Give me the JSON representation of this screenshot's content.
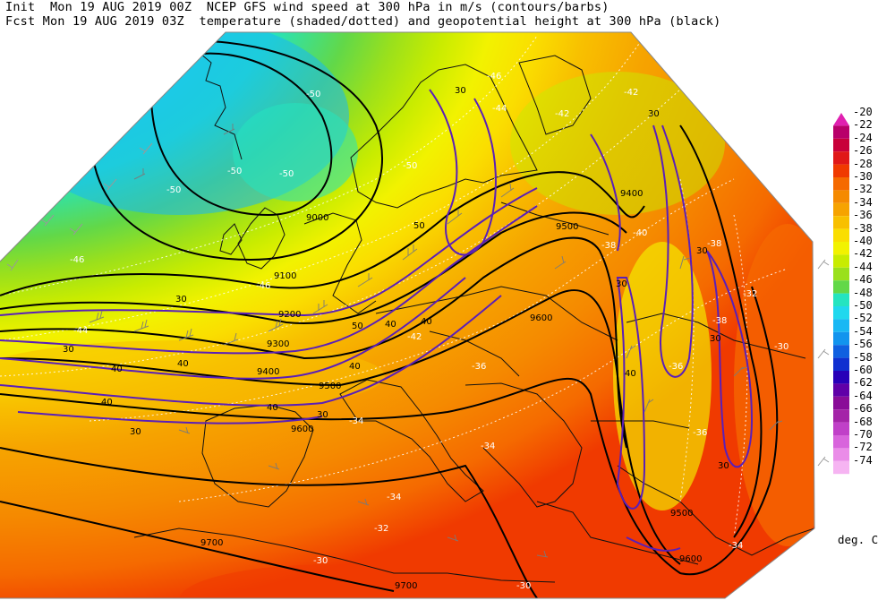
{
  "header": {
    "line1": "Init  Mon 19 AUG 2019 00Z  NCEP GFS wind speed at 300 hPa in m/s (contours/barbs)",
    "line2": "Fcst Mon 19 AUG 2019 03Z  temperature (shaded/dotted) and geopotential height at 300 hPa (black)"
  },
  "legend": {
    "units": "deg. C",
    "levels": [
      {
        "label": "-20",
        "color": "#e020b0"
      },
      {
        "label": "-22",
        "color": "#b8006a"
      },
      {
        "label": "-24",
        "color": "#c8003a"
      },
      {
        "label": "-26",
        "color": "#e01818"
      },
      {
        "label": "-28",
        "color": "#f03a00"
      },
      {
        "label": "-30",
        "color": "#f56a00"
      },
      {
        "label": "-32",
        "color": "#f58a00"
      },
      {
        "label": "-34",
        "color": "#f6a300"
      },
      {
        "label": "-36",
        "color": "#f8c000"
      },
      {
        "label": "-38",
        "color": "#fade00"
      },
      {
        "label": "-40",
        "color": "#f2f200"
      },
      {
        "label": "-42",
        "color": "#c8ec00"
      },
      {
        "label": "-44",
        "color": "#9ae01c"
      },
      {
        "label": "-46",
        "color": "#62d848"
      },
      {
        "label": "-48",
        "color": "#24e4c0"
      },
      {
        "label": "-50",
        "color": "#20d8ee"
      },
      {
        "label": "-52",
        "color": "#18b8f4"
      },
      {
        "label": "-54",
        "color": "#1294ee"
      },
      {
        "label": "-56",
        "color": "#1060e0"
      },
      {
        "label": "-58",
        "color": "#1030d0"
      },
      {
        "label": "-60",
        "color": "#2800b8"
      },
      {
        "label": "-62",
        "color": "#6000a8"
      },
      {
        "label": "-64",
        "color": "#8a0c98"
      },
      {
        "label": "-66",
        "color": "#a424a8"
      },
      {
        "label": "-68",
        "color": "#c040c8"
      },
      {
        "label": "-70",
        "color": "#d864dc"
      },
      {
        "label": "-72",
        "color": "#ea8ce8"
      },
      {
        "label": "-74",
        "color": "#f6b4f2"
      }
    ]
  },
  "height_labels": [
    {
      "text": "9000"
    },
    {
      "text": "9100"
    },
    {
      "text": "9200"
    },
    {
      "text": "9300"
    },
    {
      "text": "9400"
    },
    {
      "text": "9400"
    },
    {
      "text": "9500"
    },
    {
      "text": "9500"
    },
    {
      "text": "9500"
    },
    {
      "text": "9600"
    },
    {
      "text": "9600"
    },
    {
      "text": "9600"
    },
    {
      "text": "9700"
    },
    {
      "text": "9700"
    }
  ],
  "wind_labels": [
    {
      "text": "30"
    },
    {
      "text": "30"
    },
    {
      "text": "30"
    },
    {
      "text": "30"
    },
    {
      "text": "30"
    },
    {
      "text": "30"
    },
    {
      "text": "30"
    },
    {
      "text": "30"
    },
    {
      "text": "30"
    },
    {
      "text": "30"
    },
    {
      "text": "40"
    },
    {
      "text": "40"
    },
    {
      "text": "40"
    },
    {
      "text": "40"
    },
    {
      "text": "40"
    },
    {
      "text": "40"
    },
    {
      "text": "40"
    },
    {
      "text": "40"
    },
    {
      "text": "50"
    },
    {
      "text": "50"
    }
  ],
  "temp_labels": [
    {
      "text": "-50"
    },
    {
      "text": "-50"
    },
    {
      "text": "-50"
    },
    {
      "text": "-50"
    },
    {
      "text": "-50"
    },
    {
      "text": "-46"
    },
    {
      "text": "-46"
    },
    {
      "text": "-46"
    },
    {
      "text": "-44"
    },
    {
      "text": "-44"
    },
    {
      "text": "-42"
    },
    {
      "text": "-42"
    },
    {
      "text": "-42"
    },
    {
      "text": "-40"
    },
    {
      "text": "-38"
    },
    {
      "text": "-38"
    },
    {
      "text": "-38"
    },
    {
      "text": "-36"
    },
    {
      "text": "-36"
    },
    {
      "text": "-36"
    },
    {
      "text": "-34"
    },
    {
      "text": "-34"
    },
    {
      "text": "-34"
    },
    {
      "text": "-32"
    },
    {
      "text": "-32"
    },
    {
      "text": "-30"
    },
    {
      "text": "-30"
    },
    {
      "text": "-34"
    },
    {
      "text": "-30"
    }
  ]
}
